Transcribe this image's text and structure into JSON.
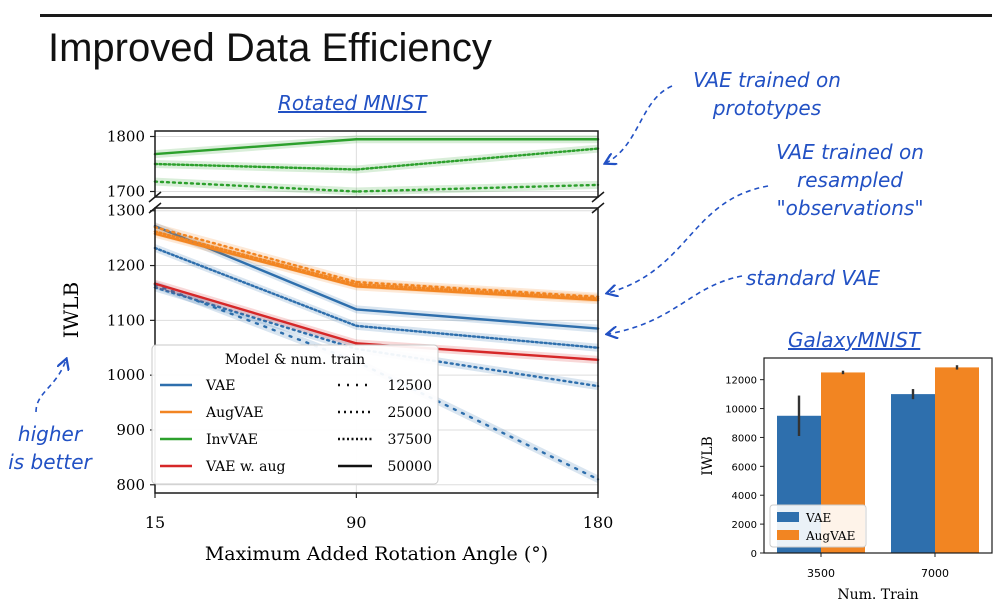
{
  "slide": {
    "title": "Improved Data Efficiency"
  },
  "annotations": {
    "rotated_title": "Rotated MNIST",
    "galaxy_title": "GalaxyMNIST",
    "prototypes": [
      "VAE trained on",
      "prototypes"
    ],
    "resampled": [
      "VAE trained on",
      "resampled",
      "\"observations\""
    ],
    "standard": "standard VAE",
    "higher": [
      "higher",
      "is better"
    ]
  },
  "colors": {
    "VAE": "#2e6fad",
    "AugVAE": "#f28522",
    "InvVAE": "#2ca02c",
    "VAE w. aug": "#d62728",
    "annotation": "#2251c4"
  },
  "chart_data": [
    {
      "type": "line",
      "title": "Rotated MNIST",
      "xlabel": "Maximum Added Rotation Angle (°)",
      "ylabel": "IWLB",
      "x": [
        15,
        90,
        180
      ],
      "xticks": [
        "15",
        "90",
        "180"
      ],
      "broken_axis": {
        "top": {
          "ylim": [
            1690,
            1810
          ],
          "yticks": [
            1700,
            1800
          ]
        },
        "bottom": {
          "ylim": [
            785,
            1305
          ],
          "yticks": [
            800,
            900,
            1000,
            1100,
            1200,
            1300
          ]
        }
      },
      "legend": {
        "title": "Model & num. train",
        "models": [
          "VAE",
          "AugVAE",
          "InvVAE",
          "VAE w. aug"
        ],
        "train_sizes": [
          "12500",
          "25000",
          "37500",
          "50000"
        ],
        "position": "lower-left"
      },
      "series": [
        {
          "model": "VAE",
          "num_train": "12500",
          "values": [
            1165,
            1025,
            810
          ]
        },
        {
          "model": "VAE",
          "num_train": "25000",
          "values": [
            1160,
            1048,
            980
          ]
        },
        {
          "model": "VAE",
          "num_train": "37500",
          "values": [
            1232,
            1090,
            1050
          ]
        },
        {
          "model": "VAE",
          "num_train": "50000",
          "values": [
            1272,
            1120,
            1085
          ]
        },
        {
          "model": "AugVAE",
          "num_train": "25000",
          "values": [
            1270,
            1170,
            1143
          ]
        },
        {
          "model": "AugVAE",
          "num_train": "37500",
          "values": [
            1262,
            1166,
            1140
          ]
        },
        {
          "model": "AugVAE",
          "num_train": "50000",
          "values": [
            1258,
            1162,
            1137
          ]
        },
        {
          "model": "InvVAE",
          "num_train": "25000",
          "values": [
            1718,
            1700,
            1712
          ]
        },
        {
          "model": "InvVAE",
          "num_train": "37500",
          "values": [
            1750,
            1740,
            1778
          ]
        },
        {
          "model": "InvVAE",
          "num_train": "50000",
          "values": [
            1768,
            1795,
            1795
          ]
        },
        {
          "model": "VAE w. aug",
          "num_train": "50000",
          "values": [
            1167,
            1058,
            1028
          ]
        }
      ]
    },
    {
      "type": "bar",
      "title": "GalaxyMNIST",
      "xlabel": "Num. Train",
      "ylabel": "IWLB",
      "categories": [
        "3500",
        "7000"
      ],
      "ylim": [
        0,
        13500
      ],
      "yticks": [
        0,
        2000,
        4000,
        6000,
        8000,
        10000,
        12000
      ],
      "legend": {
        "entries": [
          "VAE",
          "AugVAE"
        ],
        "position": "lower-left"
      },
      "series": [
        {
          "name": "VAE",
          "values": [
            9500,
            11000
          ],
          "errors": [
            1400,
            350
          ]
        },
        {
          "name": "AugVAE",
          "values": [
            12500,
            12850
          ],
          "errors": [
            120,
            150
          ]
        }
      ]
    }
  ]
}
